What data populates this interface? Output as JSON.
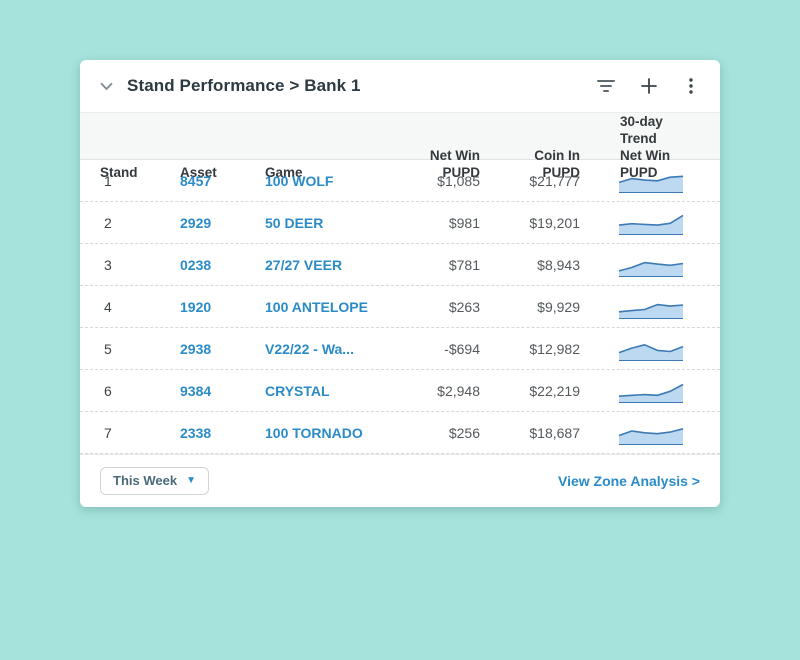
{
  "theme": {
    "page_bg": "#a6e3dd",
    "card_bg": "#ffffff",
    "link_color": "#2a8bc7",
    "spark_stroke": "#3d7ab5",
    "spark_fill": "#bcd9f1"
  },
  "header": {
    "title": "Stand Performance > Bank 1",
    "icons": [
      "chevron-down-icon",
      "filter-icon",
      "plus-icon",
      "kebab-menu-icon"
    ]
  },
  "table": {
    "columns": [
      {
        "line1": "Stand",
        "line2": ""
      },
      {
        "line1": "Asset",
        "line2": ""
      },
      {
        "line1": "Game",
        "line2": ""
      },
      {
        "line1": "Net Win",
        "line2": "PUPD"
      },
      {
        "line1": "Coin In",
        "line2": "PUPD"
      },
      {
        "line1": "30-day Trend",
        "line2": "Net Win PUPD"
      }
    ],
    "rows": [
      {
        "stand": "1",
        "asset": "8457",
        "game": "100 WOLF",
        "net_win": "$1,085",
        "coin_in": "$21,777",
        "trend": [
          0.45,
          0.62,
          0.55,
          0.52,
          0.68,
          0.72
        ]
      },
      {
        "stand": "2",
        "asset": "2929",
        "game": "50 DEER",
        "net_win": "$981",
        "coin_in": "$19,201",
        "trend": [
          0.42,
          0.48,
          0.45,
          0.42,
          0.5,
          0.85
        ]
      },
      {
        "stand": "3",
        "asset": "0238",
        "game": "27/27 VEER",
        "net_win": "$781",
        "coin_in": "$8,943",
        "trend": [
          0.25,
          0.4,
          0.62,
          0.55,
          0.5,
          0.58
        ]
      },
      {
        "stand": "4",
        "asset": "1920",
        "game": "100 ANTELOPE",
        "net_win": "$263",
        "coin_in": "$9,929",
        "trend": [
          0.3,
          0.35,
          0.4,
          0.62,
          0.55,
          0.6
        ]
      },
      {
        "stand": "5",
        "asset": "2938",
        "game": "V22/22 - Wa...",
        "net_win": "-$694",
        "coin_in": "$12,982",
        "trend": [
          0.35,
          0.55,
          0.7,
          0.45,
          0.4,
          0.62
        ]
      },
      {
        "stand": "6",
        "asset": "9384",
        "game": "CRYSTAL",
        "net_win": "$2,948",
        "coin_in": "$22,219",
        "trend": [
          0.28,
          0.32,
          0.35,
          0.32,
          0.5,
          0.8
        ]
      },
      {
        "stand": "7",
        "asset": "2338",
        "game": "100 TORNADO",
        "net_win": "$256",
        "coin_in": "$18,687",
        "trend": [
          0.4,
          0.6,
          0.52,
          0.48,
          0.55,
          0.7
        ]
      }
    ]
  },
  "footer": {
    "period_label": "This Week",
    "period_caret": "▼",
    "zone_link": "View Zone Analysis >"
  }
}
